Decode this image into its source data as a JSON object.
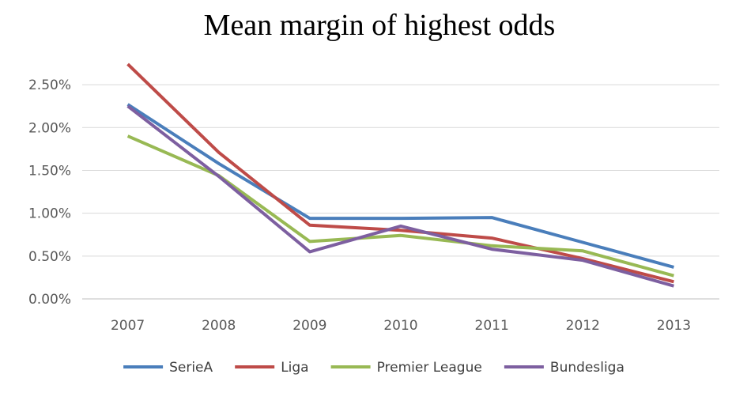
{
  "chart_data": {
    "type": "line",
    "title": "Mean margin of highest odds",
    "xlabel": "",
    "ylabel": "",
    "categories": [
      "2007",
      "2008",
      "2009",
      "2010",
      "2011",
      "2012",
      "2013"
    ],
    "ylim": [
      0,
      2.75
    ],
    "y_ticks": [
      0,
      0.5,
      1.0,
      1.5,
      2.0,
      2.5
    ],
    "y_tick_labels": [
      "0.00%",
      "0.50%",
      "1.00%",
      "1.50%",
      "2.00%",
      "2.50%"
    ],
    "grid": true,
    "legend_position": "bottom",
    "series": [
      {
        "name": "SerieA",
        "color": "#4a7ebb",
        "values": [
          2.27,
          1.58,
          0.94,
          0.94,
          0.95,
          0.66,
          0.37
        ]
      },
      {
        "name": "Liga",
        "color": "#be4b48",
        "values": [
          2.74,
          1.71,
          0.86,
          0.8,
          0.71,
          0.47,
          0.2
        ]
      },
      {
        "name": "Premier League",
        "color": "#98b954",
        "values": [
          1.9,
          1.44,
          0.67,
          0.74,
          0.62,
          0.56,
          0.27
        ]
      },
      {
        "name": "Bundesliga",
        "color": "#7d5fa0",
        "values": [
          2.25,
          1.43,
          0.55,
          0.85,
          0.58,
          0.45,
          0.15
        ]
      }
    ]
  }
}
